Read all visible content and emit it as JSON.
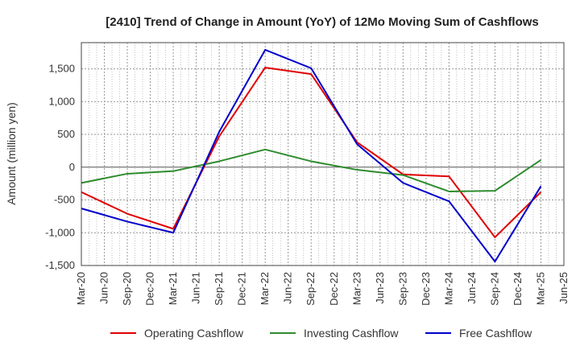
{
  "chart_data": {
    "type": "line",
    "title": "[2410]  Trend of Change in Amount (YoY) of 12Mo Moving Sum of Cashflows",
    "xlabel": "",
    "ylabel": "Amount (million yen)",
    "ylim": [
      -1500,
      1900
    ],
    "yticks": [
      -1500,
      -1000,
      -500,
      0,
      500,
      1000,
      1500
    ],
    "ytick_labels": [
      "-1,500",
      "-1,000",
      "-500",
      "0",
      "500",
      "1,000",
      "1,500"
    ],
    "categories": [
      "Mar-20",
      "Jun-20",
      "Sep-20",
      "Dec-20",
      "Mar-21",
      "Jun-21",
      "Sep-21",
      "Dec-21",
      "Mar-22",
      "Jun-22",
      "Sep-22",
      "Dec-22",
      "Mar-23",
      "Jun-23",
      "Sep-23",
      "Dec-23",
      "Mar-24",
      "Jun-24",
      "Sep-24",
      "Dec-24",
      "Mar-25",
      "Jun-25"
    ],
    "grid": true,
    "legend_position": "bottom",
    "series": [
      {
        "name": "Operating Cashflow",
        "color": "#e00000",
        "x": [
          "Mar-20",
          "Sep-20",
          "Mar-21",
          "Sep-21",
          "Mar-22",
          "Sep-22",
          "Mar-23",
          "Sep-23",
          "Mar-24",
          "Sep-24",
          "Mar-25"
        ],
        "values": [
          -380,
          -710,
          -940,
          470,
          1520,
          1420,
          380,
          -110,
          -140,
          -1070,
          -380
        ]
      },
      {
        "name": "Investing Cashflow",
        "color": "#2e8b2e",
        "x": [
          "Mar-20",
          "Sep-20",
          "Mar-21",
          "Sep-21",
          "Mar-22",
          "Sep-22",
          "Mar-23",
          "Sep-23",
          "Mar-24",
          "Sep-24",
          "Mar-25"
        ],
        "values": [
          -240,
          -100,
          -60,
          90,
          270,
          90,
          -40,
          -120,
          -370,
          -360,
          110
        ]
      },
      {
        "name": "Free Cashflow",
        "color": "#0000cc",
        "x": [
          "Mar-20",
          "Sep-20",
          "Mar-21",
          "Sep-21",
          "Mar-22",
          "Sep-22",
          "Mar-23",
          "Sep-23",
          "Mar-24",
          "Sep-24",
          "Mar-25"
        ],
        "values": [
          -630,
          -830,
          -1000,
          540,
          1790,
          1510,
          350,
          -240,
          -520,
          -1440,
          -290
        ]
      }
    ]
  }
}
